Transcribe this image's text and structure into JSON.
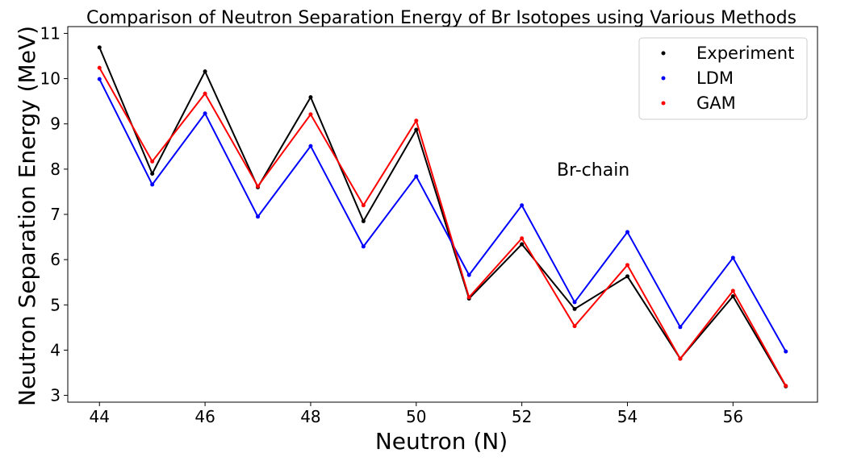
{
  "chart_data": {
    "type": "line",
    "title": "Comparison of Neutron Separation Energy of Br Isotopes using Various Methods",
    "xlabel": "Neutron (N)",
    "ylabel": "Neutron Separation Energy (MeV)",
    "xlim": [
      43.4,
      57.6
    ],
    "ylim": [
      2.85,
      11.15
    ],
    "xticks": [
      44,
      46,
      48,
      50,
      52,
      54,
      56
    ],
    "yticks": [
      3,
      4,
      5,
      6,
      7,
      8,
      9,
      10,
      11
    ],
    "grid": false,
    "legend_position": "top-right",
    "annotation": "Br-chain",
    "x": [
      44,
      45,
      46,
      47,
      48,
      49,
      50,
      51,
      52,
      53,
      54,
      55,
      56,
      57
    ],
    "series": [
      {
        "name": "Experiment",
        "color": "#000000",
        "values": [
          10.69,
          7.9,
          10.16,
          7.6,
          9.59,
          6.85,
          8.87,
          5.14,
          6.34,
          4.91,
          5.63,
          3.81,
          5.19,
          3.2
        ]
      },
      {
        "name": "LDM",
        "color": "#0000ff",
        "values": [
          9.99,
          7.66,
          9.23,
          6.95,
          8.51,
          6.29,
          7.84,
          5.66,
          7.2,
          5.06,
          6.61,
          4.51,
          6.04,
          3.97
        ]
      },
      {
        "name": "GAM",
        "color": "#ff0000",
        "values": [
          10.24,
          8.17,
          9.67,
          7.62,
          9.21,
          7.2,
          9.07,
          5.17,
          6.47,
          4.53,
          5.88,
          3.81,
          5.31,
          3.21
        ]
      }
    ]
  }
}
